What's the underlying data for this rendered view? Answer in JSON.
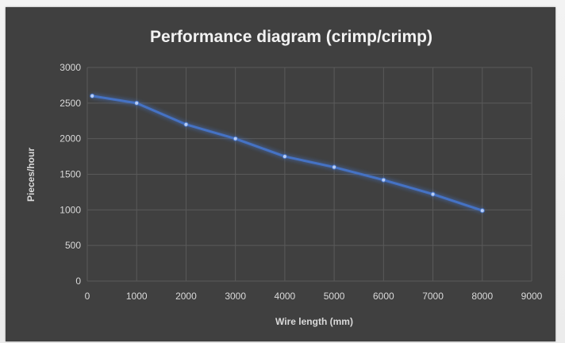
{
  "chart_data": {
    "type": "line",
    "title": "Performance diagram (crimp/crimp)",
    "xlabel": "Wire length (mm)",
    "ylabel": "Pieces/hour",
    "xlim": [
      0,
      9000
    ],
    "ylim": [
      0,
      3000
    ],
    "x_ticks": [
      0,
      1000,
      2000,
      3000,
      4000,
      5000,
      6000,
      7000,
      8000,
      9000
    ],
    "y_ticks": [
      0,
      500,
      1000,
      1500,
      2000,
      2500,
      3000
    ],
    "grid": true,
    "legend": "none",
    "series": [
      {
        "x": [
          100,
          1000,
          2000,
          3000,
          4000,
          5000,
          6000,
          7000,
          8000
        ],
        "y": [
          2600,
          2500,
          2200,
          2000,
          1750,
          1600,
          1420,
          1220,
          990
        ],
        "color": "#4472c4"
      }
    ],
    "colors": {
      "panel_background": "#404040",
      "gridline": "#5a5a5a",
      "text": "#d9d9d9",
      "title": "#f2f2f2",
      "line": "#4472c4"
    }
  }
}
